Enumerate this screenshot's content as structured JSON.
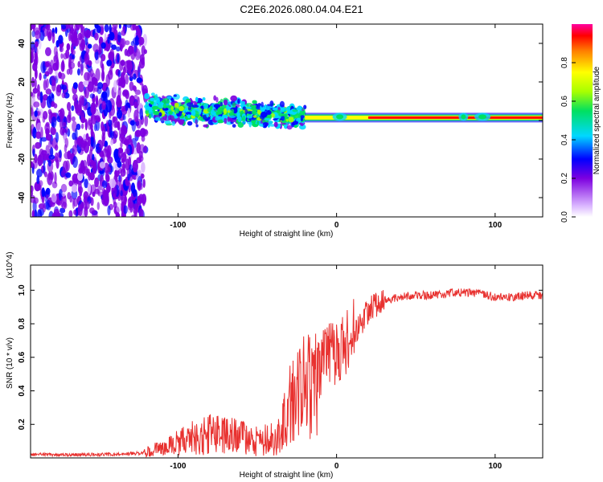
{
  "figure_title": "C2E6.2026.080.04.04.E21",
  "chart_data": [
    {
      "type": "heatmap",
      "title": "C2E6.2026.080.04.04.E21",
      "xlabel": "Height of straight line (km)",
      "ylabel": "Frequency (Hz)",
      "xlim": [
        -193,
        130
      ],
      "ylim": [
        -50,
        50
      ],
      "x_ticks": [
        -100,
        0,
        100
      ],
      "x_tick_labels": [
        "-100",
        "0",
        "100"
      ],
      "y_ticks": [
        -40,
        -20,
        0,
        20,
        40
      ],
      "y_tick_labels": [
        "-40",
        "-20",
        "0",
        "20",
        "40"
      ],
      "colorbar": {
        "label": "Normalized spectral amplitude",
        "range": [
          0,
          1
        ],
        "ticks": [
          0.0,
          0.2,
          0.4,
          0.6,
          0.8
        ],
        "tick_labels": [
          "0.0",
          "0.2",
          "0.4",
          "0.6",
          "0.8"
        ]
      },
      "regions": [
        {
          "name": "noise",
          "x_range": [
            -193,
            -120
          ],
          "freq_range": [
            -50,
            50
          ],
          "amplitude": 0.2
        },
        {
          "name": "band",
          "x_range": [
            -120,
            -20
          ],
          "freq_center": [
            6,
            2
          ],
          "freq_halfwidth": [
            7,
            6
          ],
          "amplitude": 0.38
        },
        {
          "name": "carrier",
          "x_range": [
            -20,
            130
          ],
          "freq_center": 1.5,
          "amplitude": 0.95
        }
      ]
    },
    {
      "type": "line",
      "xlabel": "Height of straight line (km)",
      "ylabel": "SNR (10 * v/v)",
      "y_multiplier": "(x10^4)",
      "xlim": [
        -193,
        130
      ],
      "ylim": [
        0,
        1.15
      ],
      "x_ticks": [
        -100,
        0,
        100
      ],
      "x_tick_labels": [
        "-100",
        "0",
        "100"
      ],
      "y_ticks": [
        0.2,
        0.4,
        0.6,
        0.8,
        1.0
      ],
      "y_tick_labels": [
        "0.2",
        "0.4",
        "0.6",
        "0.8",
        "1.0"
      ],
      "series": [
        {
          "name": "SNR",
          "color": "#e8312f",
          "x": [
            -193,
            -170,
            -140,
            -122,
            -110,
            -100,
            -90,
            -80,
            -70,
            -60,
            -50,
            -40,
            -35,
            -30,
            -25,
            -20,
            -15,
            -10,
            -5,
            0,
            5,
            10,
            15,
            20,
            25,
            30,
            40,
            50,
            60,
            70,
            80,
            90,
            100,
            110,
            120,
            130
          ],
          "y": [
            0.02,
            0.02,
            0.02,
            0.03,
            0.06,
            0.09,
            0.12,
            0.14,
            0.13,
            0.12,
            0.11,
            0.12,
            0.15,
            0.32,
            0.4,
            0.42,
            0.45,
            0.55,
            0.62,
            0.6,
            0.68,
            0.75,
            0.8,
            0.88,
            0.92,
            0.94,
            0.96,
            0.97,
            0.97,
            0.98,
            0.99,
            0.98,
            0.96,
            0.96,
            0.97,
            0.97
          ]
        }
      ]
    }
  ]
}
